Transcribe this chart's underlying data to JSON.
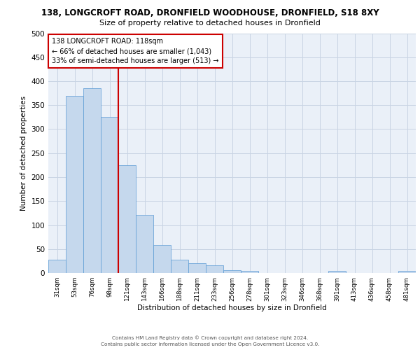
{
  "title_line1": "138, LONGCROFT ROAD, DRONFIELD WOODHOUSE, DRONFIELD, S18 8XY",
  "title_line2": "Size of property relative to detached houses in Dronfield",
  "xlabel": "Distribution of detached houses by size in Dronfield",
  "ylabel": "Number of detached properties",
  "categories": [
    "31sqm",
    "53sqm",
    "76sqm",
    "98sqm",
    "121sqm",
    "143sqm",
    "166sqm",
    "188sqm",
    "211sqm",
    "233sqm",
    "256sqm",
    "278sqm",
    "301sqm",
    "323sqm",
    "346sqm",
    "368sqm",
    "391sqm",
    "413sqm",
    "436sqm",
    "458sqm",
    "481sqm"
  ],
  "values": [
    28,
    370,
    385,
    325,
    225,
    121,
    59,
    28,
    21,
    16,
    6,
    4,
    0,
    0,
    0,
    0,
    4,
    0,
    0,
    0,
    4
  ],
  "bar_color": "#c5d8ed",
  "bar_edge_color": "#5b9bd5",
  "vline_color": "#cc0000",
  "ylim": [
    0,
    500
  ],
  "yticks": [
    0,
    50,
    100,
    150,
    200,
    250,
    300,
    350,
    400,
    450,
    500
  ],
  "annotation_title": "138 LONGCROFT ROAD: 118sqm",
  "annotation_line1": "← 66% of detached houses are smaller (1,043)",
  "annotation_line2": "33% of semi-detached houses are larger (513) →",
  "annotation_box_color": "#ffffff",
  "annotation_box_edge": "#cc0000",
  "grid_color": "#c8d4e3",
  "background_color": "#eaf0f8",
  "footer_line1": "Contains HM Land Registry data © Crown copyright and database right 2024.",
  "footer_line2": "Contains public sector information licensed under the Open Government Licence v3.0."
}
